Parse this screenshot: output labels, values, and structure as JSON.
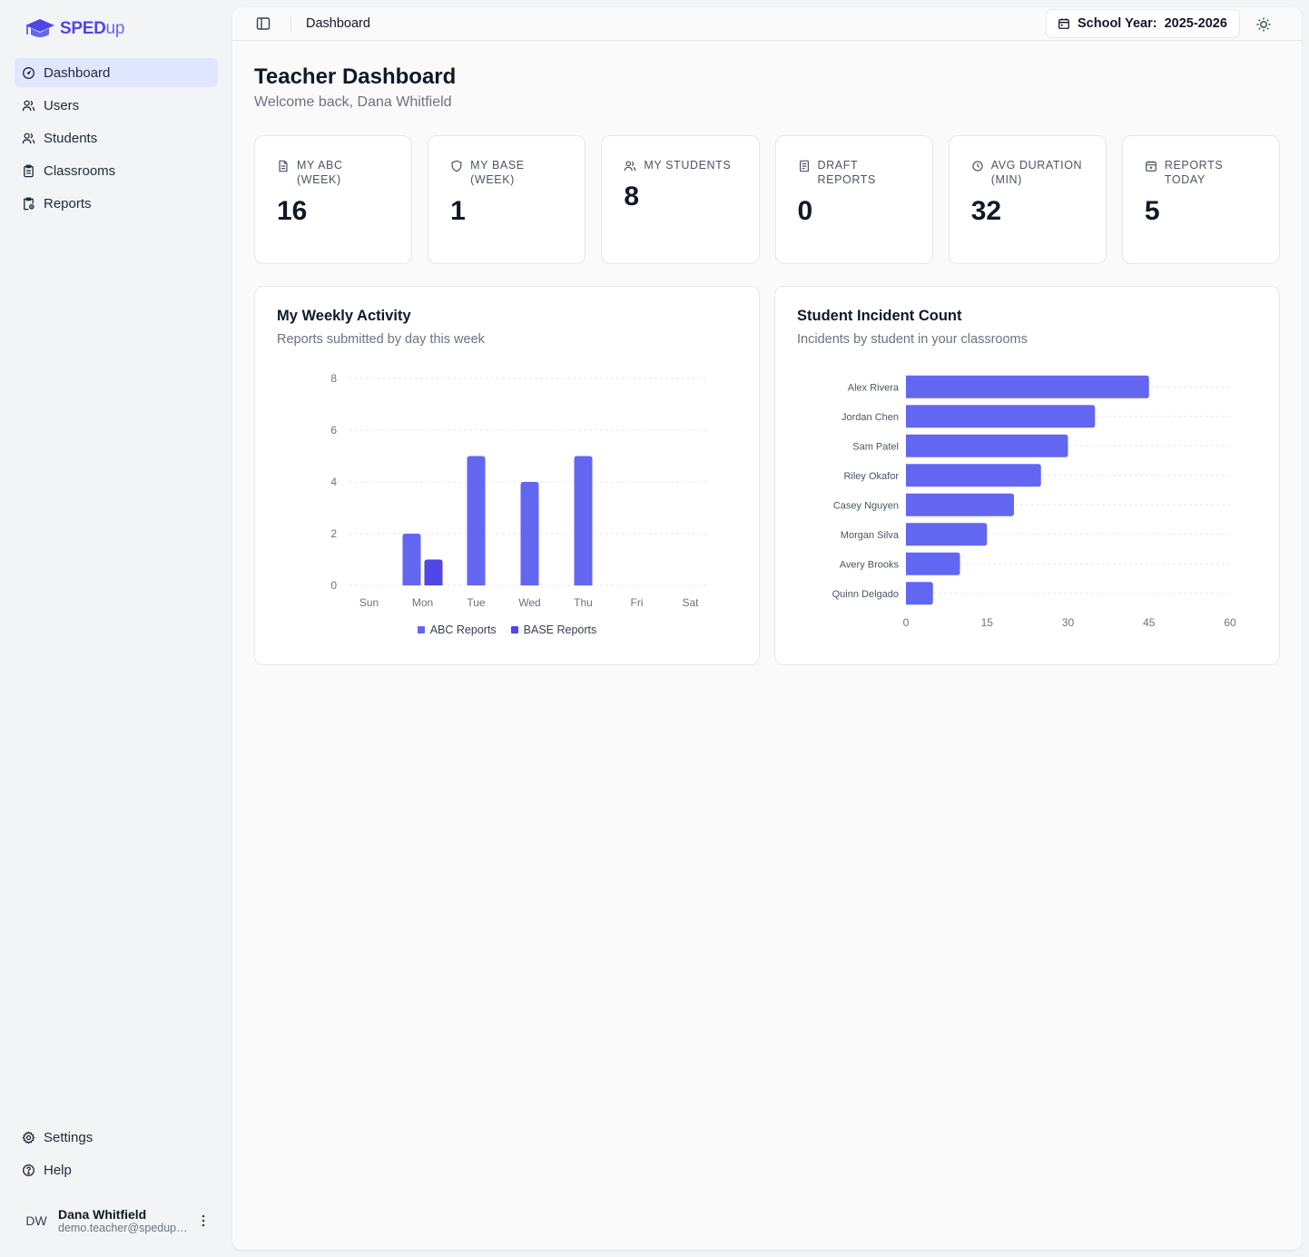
{
  "app": {
    "brand_sped": "SPED",
    "brand_up": "up"
  },
  "sidebar": {
    "items": [
      {
        "label": "Dashboard",
        "icon": "gauge-icon"
      },
      {
        "label": "Users",
        "icon": "users-icon"
      },
      {
        "label": "Students",
        "icon": "users-icon"
      },
      {
        "label": "Classrooms",
        "icon": "clipboard-icon"
      },
      {
        "label": "Reports",
        "icon": "clipboard-report-icon"
      }
    ],
    "bottom_items": [
      {
        "label": "Settings",
        "icon": "gear-icon"
      },
      {
        "label": "Help",
        "icon": "help-circle-icon"
      }
    ],
    "user": {
      "initials": "DW",
      "name": "Dana Whitfield",
      "email": "demo.teacher@spedup.app"
    }
  },
  "topbar": {
    "breadcrumb": "Dashboard",
    "school_year_label": "School Year:",
    "school_year_value": "2025-2026"
  },
  "header": {
    "title": "Teacher Dashboard",
    "subtitle": "Welcome back, Dana Whitfield"
  },
  "stats": [
    {
      "label": "My ABC (Week)",
      "value": "16",
      "icon": "document-icon"
    },
    {
      "label": "My BASE (Week)",
      "value": "1",
      "icon": "shield-icon"
    },
    {
      "label": "My Students",
      "value": "8",
      "icon": "users-icon"
    },
    {
      "label": "Draft Reports",
      "value": "0",
      "icon": "draft-icon"
    },
    {
      "label": "Avg Duration (min)",
      "value": "32",
      "icon": "clock-icon"
    },
    {
      "label": "Reports Today",
      "value": "5",
      "icon": "calendar-icon"
    }
  ],
  "colors": {
    "accent": "#6366f1",
    "accent_dark": "#4f46e5",
    "active_bg": "#e0e7ff"
  },
  "weekly_card": {
    "title": "My Weekly Activity",
    "subtitle": "Reports submitted by day this week"
  },
  "incident_card": {
    "title": "Student Incident Count",
    "subtitle": "Incidents by student in your classrooms"
  },
  "chart_data": [
    {
      "type": "bar",
      "categories": [
        "Sun",
        "Mon",
        "Tue",
        "Wed",
        "Thu",
        "Fri",
        "Sat"
      ],
      "series": [
        {
          "name": "ABC Reports",
          "color": "#6366f1",
          "values": [
            0,
            2,
            5,
            4,
            5,
            0,
            0
          ]
        },
        {
          "name": "BASE Reports",
          "color": "#4f46e5",
          "values": [
            0,
            1,
            0,
            0,
            0,
            0,
            0
          ]
        }
      ],
      "yticks": [
        "0",
        "2",
        "4",
        "6",
        "8"
      ],
      "ylim": [
        0,
        8
      ],
      "grid": true,
      "legend": "bottom"
    },
    {
      "type": "bar",
      "orientation": "horizontal",
      "categories": [
        "Alex Rivera",
        "Jordan Chen",
        "Sam Patel",
        "Riley Okafor",
        "Casey Nguyen",
        "Morgan Silva",
        "Avery Brooks",
        "Quinn Delgado"
      ],
      "values": [
        45,
        35,
        30,
        25,
        20,
        15,
        10,
        5
      ],
      "color": "#6366f1",
      "xticks": [
        "0",
        "15",
        "30",
        "45",
        "60"
      ],
      "xlim": [
        0,
        60
      ],
      "grid": true
    }
  ]
}
